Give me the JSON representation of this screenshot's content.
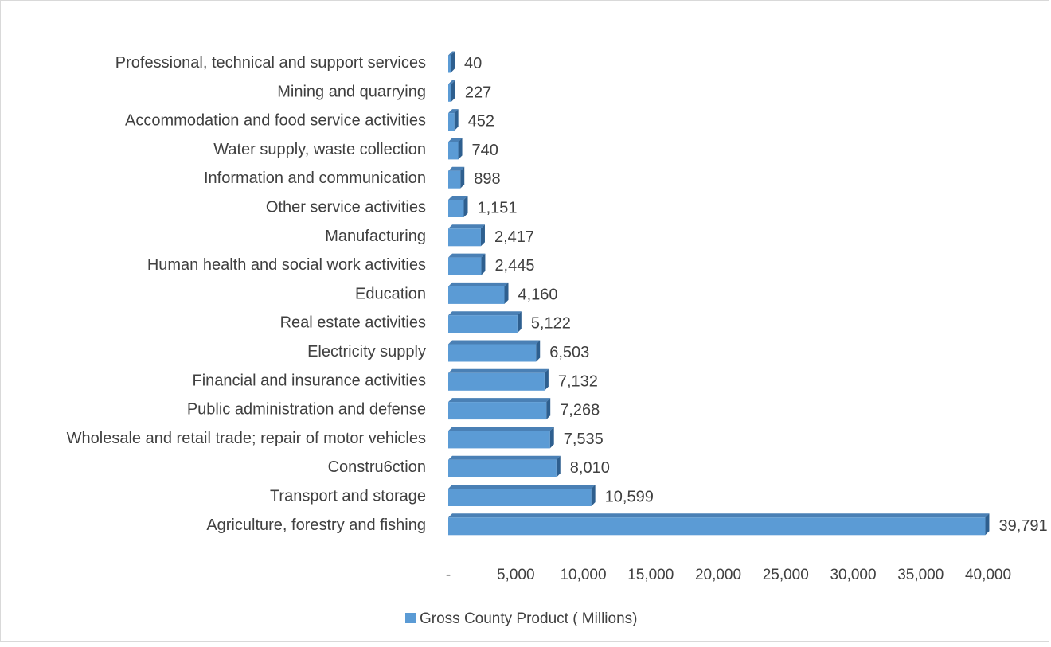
{
  "chart_data": {
    "type": "bar",
    "orientation": "horizontal",
    "style": "3d",
    "categories": [
      "Professional, technical and support services",
      "Mining and quarrying",
      "Accommodation and food service activities",
      "Water supply, waste collection",
      "Information and communication",
      "Other service activities",
      "Manufacturing",
      "Human health and social work activities",
      "Education",
      "Real estate activities",
      "Electricity supply",
      "Financial and insurance activities",
      "Public administration and defense",
      "Wholesale and retail trade; repair of motor vehicles",
      "Constru6ction",
      "Transport and storage",
      "Agriculture, forestry and fishing"
    ],
    "series": [
      {
        "name": "Gross County Product ( Millions)",
        "values": [
          40,
          227,
          452,
          740,
          898,
          1151,
          2417,
          2445,
          4160,
          5122,
          6503,
          7132,
          7268,
          7535,
          8010,
          10599,
          39791
        ],
        "data_labels": [
          "40",
          "227",
          "452",
          "740",
          "898",
          "1,151",
          "2,417",
          "2,445",
          "4,160",
          "5,122",
          "6,503",
          "7,132",
          "7,268",
          "7,535",
          "8,010",
          "10,599",
          "39,791"
        ]
      }
    ],
    "x_ticks": [
      "-",
      "5,000",
      "10,000",
      "15,000",
      "20,000",
      "25,000",
      "30,000",
      "35,000",
      "40,000"
    ],
    "xlim": [
      0,
      40000
    ],
    "title": "",
    "xlabel": "",
    "ylabel": "",
    "grid": false,
    "legend_position": "bottom",
    "colors": {
      "bar_front": "#5b9bd5",
      "bar_top": "#4a80b5",
      "bar_side": "#2e5f8f",
      "text": "#404040"
    }
  }
}
